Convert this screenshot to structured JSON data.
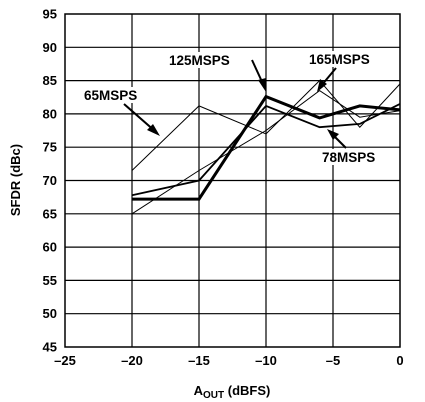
{
  "chart_data": {
    "type": "line",
    "xlabel_main": "A",
    "xlabel_sub": "OUT",
    "xlabel_rest": " (dBFS)",
    "ylabel": "SFDR (dBc)",
    "xlim": [
      -25,
      0
    ],
    "ylim": [
      45,
      95
    ],
    "x_ticks": [
      -25,
      -20,
      -15,
      -10,
      -5,
      0
    ],
    "x_tick_labels": [
      "–25",
      "–20",
      "–15",
      "–10",
      "–5",
      "0"
    ],
    "y_ticks": [
      45,
      50,
      55,
      60,
      65,
      70,
      75,
      80,
      85,
      90,
      95
    ],
    "y_tick_labels": [
      "45",
      "50",
      "55",
      "60",
      "65",
      "70",
      "75",
      "80",
      "85",
      "90",
      "95"
    ],
    "grid": true,
    "series": [
      {
        "name": "65MSPS",
        "x": [
          -20,
          -15,
          -10,
          -6,
          -3,
          0
        ],
        "y": [
          71.5,
          81.2,
          77.0,
          85.0,
          78.0,
          84.5
        ],
        "weight": "thin"
      },
      {
        "name": "125MSPS",
        "x": [
          -20,
          -15,
          -10,
          -6,
          -3,
          0
        ],
        "y": [
          67.2,
          67.2,
          82.6,
          79.4,
          81.2,
          80.6
        ],
        "weight": "bold"
      },
      {
        "name": "165MSPS",
        "x": [
          -20,
          -15,
          -10,
          -6,
          -3,
          0
        ],
        "y": [
          65.0,
          71.5,
          77.5,
          83.5,
          79.5,
          80.5
        ],
        "weight": "thin"
      },
      {
        "name": "78MSPS",
        "x": [
          -20,
          -15,
          -10,
          -6,
          -3,
          0
        ],
        "y": [
          67.8,
          70.0,
          81.2,
          78.0,
          78.5,
          81.5
        ],
        "weight": "medium"
      }
    ]
  }
}
